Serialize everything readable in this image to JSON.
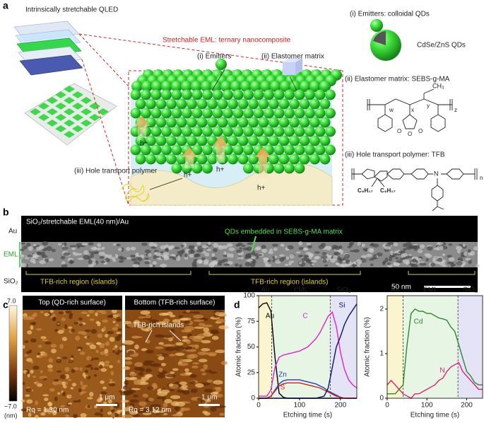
{
  "panel_labels": [
    "a",
    "b",
    "c",
    "d"
  ],
  "panel_a": {
    "stack_title": "Intrinsically stretchable QLED",
    "eml_title": "Stretchable EML: ternary nanocomposite",
    "emitters": "(i) Emitters",
    "elastomer": "(ii) Elastomer matrix",
    "hole_labels": [
      "h+",
      "h+",
      "h+",
      "h+"
    ],
    "htp": "(iii) Hole transport polymer",
    "right": {
      "emitters_title": "(i) Emitters: colloidal QDs",
      "qd_label": "CdSe/ZnS QDs",
      "elastomer_title": "(ii) Elastomer matrix: SEBS-g-MA",
      "sebs_labels": [
        "w",
        "x",
        "y",
        "z"
      ],
      "ch3": "CH₃",
      "anhydride_atoms": [
        "O",
        "O",
        "O"
      ],
      "htp_title": "(iii) Hole transport polymer: TFB",
      "tfb_n": "n",
      "tfb_N": "N",
      "tfb_alkyl": [
        "C₈H₁₇",
        "C₈H₁₇"
      ]
    }
  },
  "panel_b": {
    "title": "SiO₂/stretchable EML(40 nm)/Au",
    "qd_note": "QDs embedded in SEBS-g-MA matrix",
    "layers": [
      "Au",
      "EML",
      "SiO₂"
    ],
    "regions": [
      "TFB-rich region (islands)",
      "TFB-rich region (islands)"
    ],
    "scale": "50 nm"
  },
  "panel_c": {
    "colorbar_top": "7.0",
    "colorbar_bottom": "−7.0",
    "colorbar_unit": "(nm)",
    "left_title": "Top (QD-rich surface)",
    "right_title": "Bottom (TFB-rich surface)",
    "left_rq": "Rq = 1.30 nm",
    "right_rq": "Rq = 3.12 nm",
    "scales": [
      "1 μm",
      "1 μm"
    ],
    "islands": "TFB-rich islands"
  },
  "chart_data": [
    {
      "type": "line",
      "y_label": "Atomic fraction (%)",
      "x_label": "Etching time (s)",
      "x": [
        0,
        10,
        20,
        30,
        40,
        50,
        60,
        70,
        80,
        90,
        100,
        110,
        120,
        130,
        140,
        150,
        160,
        170,
        180,
        190,
        200,
        210,
        220,
        230,
        240
      ],
      "xlim": [
        0,
        240
      ],
      "xticks": [
        0,
        100,
        200
      ],
      "ylim": [
        0,
        100
      ],
      "yticks": [
        0,
        25,
        50,
        75,
        100
      ],
      "regions": [
        {
          "label": "Au",
          "start": 0,
          "end": 32,
          "color": "#fbf5cf"
        },
        {
          "label": "EML",
          "start": 32,
          "end": 175,
          "color": "#e7f6e4"
        },
        {
          "label": "SiO₂",
          "start": 175,
          "end": 240,
          "color": "#e4e4f6"
        }
      ],
      "series": [
        {
          "name": "Au",
          "color": "#000000",
          "values": [
            88,
            92,
            93,
            85,
            40,
            5,
            1,
            0,
            0,
            0,
            0,
            0,
            0,
            0,
            0,
            0,
            0,
            0,
            0,
            0,
            0,
            0,
            0,
            0,
            0
          ]
        },
        {
          "name": "C",
          "color": "#e020d0",
          "values": [
            2,
            2,
            2,
            8,
            30,
            40,
            42,
            43,
            44,
            45,
            46,
            48,
            50,
            54,
            58,
            64,
            72,
            80,
            84,
            70,
            45,
            28,
            18,
            13,
            10
          ]
        },
        {
          "name": "Zn",
          "color": "#1f3fbf",
          "values": [
            0,
            0,
            0,
            2,
            8,
            14,
            17,
            18,
            18,
            18,
            18,
            17,
            16,
            15,
            14,
            12,
            10,
            7,
            5,
            3,
            1,
            0,
            0,
            0,
            0
          ]
        },
        {
          "name": "S",
          "color": "#d42020",
          "values": [
            0,
            0,
            0,
            2,
            7,
            12,
            14,
            15,
            15,
            15,
            15,
            14,
            13,
            12,
            11,
            10,
            8,
            6,
            4,
            2,
            1,
            0,
            0,
            0,
            0
          ]
        },
        {
          "name": "Si",
          "color": "#101070",
          "values": [
            0,
            0,
            0,
            0,
            0,
            0,
            0,
            0,
            0,
            0,
            0,
            0,
            0,
            0,
            0,
            1,
            2,
            10,
            30,
            50,
            60,
            72,
            80,
            86,
            92
          ]
        }
      ]
    },
    {
      "type": "line",
      "y_label": "Atomic fraction (%)",
      "x_label": "Etching time (s)",
      "x": [
        0,
        10,
        20,
        30,
        40,
        50,
        60,
        70,
        80,
        90,
        100,
        110,
        120,
        130,
        140,
        150,
        160,
        170,
        180,
        190,
        200,
        210,
        220,
        230,
        240
      ],
      "xlim": [
        0,
        240
      ],
      "xticks": [
        0,
        100,
        200
      ],
      "ylim": [
        0,
        2.3
      ],
      "yticks": [
        0,
        1,
        2
      ],
      "regions": [
        {
          "label": "Au",
          "start": 0,
          "end": 40,
          "color": "#fbf5cf"
        },
        {
          "label": "EML",
          "start": 40,
          "end": 178,
          "color": "#e7f6e4"
        },
        {
          "label": "SiO₂",
          "start": 178,
          "end": 240,
          "color": "#e4e4f6"
        }
      ],
      "series": [
        {
          "name": "Cd",
          "color": "#2a8a2a",
          "values": [
            0.1,
            0.1,
            0.1,
            0.2,
            0.3,
            1.2,
            1.9,
            2.0,
            1.95,
            1.95,
            1.9,
            1.9,
            1.85,
            1.8,
            1.78,
            1.75,
            1.6,
            1.5,
            1.2,
            0.9,
            0.6,
            0.5,
            0.35,
            0.3,
            0.3
          ]
        },
        {
          "name": "N",
          "color": "#e0207a",
          "values": [
            0.3,
            0.4,
            0.3,
            0.2,
            0.1,
            0.05,
            0.0,
            0.1,
            0.1,
            0.15,
            0.2,
            0.25,
            0.3,
            0.4,
            0.45,
            0.6,
            0.7,
            0.75,
            0.8,
            0.6,
            0.5,
            0.4,
            0.3,
            0.2,
            0.2
          ]
        }
      ]
    }
  ]
}
